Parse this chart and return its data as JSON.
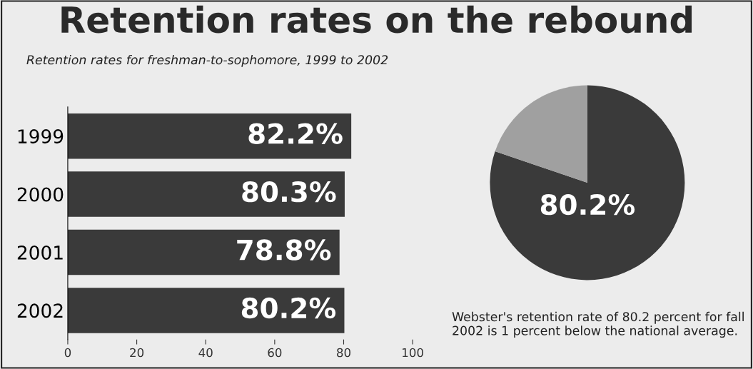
{
  "chart_data": [
    {
      "type": "bar",
      "orientation": "horizontal",
      "title": "Retention rates on the rebound",
      "subtitle": "Retention rates for freshman-to-sophomore, 1999 to 2002",
      "categories": [
        "1999",
        "2000",
        "2001",
        "2002"
      ],
      "values": [
        82.2,
        80.3,
        78.8,
        80.2
      ],
      "color": "#3a3a3a",
      "value_labels": [
        "82.2%",
        "80.3%",
        "78.8%",
        "80.2%"
      ],
      "xlim": [
        0,
        100
      ],
      "xticks": [
        0,
        20,
        40,
        60,
        80,
        100
      ],
      "grid": false,
      "legend": false
    },
    {
      "type": "pie",
      "categories": [
        null,
        null
      ],
      "values": [
        80.2,
        19.8
      ],
      "colors": [
        "#3a3a3a",
        "#a0a0a0"
      ],
      "value_labels": [
        "80.2%",
        null
      ],
      "annotations": [
        "Webster's retention rate of 80.2 percent for fall 2002 is 1 percent below the national average."
      ],
      "legend": false
    }
  ]
}
